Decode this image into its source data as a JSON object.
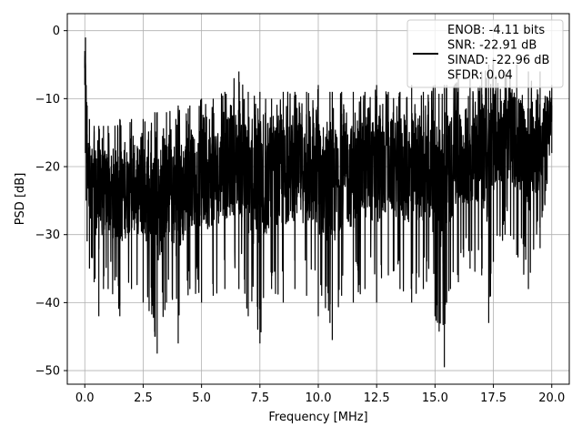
{
  "chart_data": {
    "type": "line",
    "title": "",
    "xlabel": "Frequency [MHz]",
    "ylabel": "PSD [dB]",
    "xlim": [
      -0.75,
      20.75
    ],
    "ylim": [
      -52,
      2.5
    ],
    "xticks": [
      0.0,
      2.5,
      5.0,
      7.5,
      10.0,
      12.5,
      15.0,
      17.5,
      20.0
    ],
    "xtick_labels": [
      "0.0",
      "2.5",
      "5.0",
      "7.5",
      "10.0",
      "12.5",
      "15.0",
      "17.5",
      "20.0"
    ],
    "yticks": [
      0,
      -10,
      -20,
      -30,
      -40,
      -50
    ],
    "ytick_labels": [
      "0",
      "−10",
      "−20",
      "−30",
      "−40",
      "−50"
    ],
    "grid": true,
    "legend": {
      "placement": "top-right",
      "entries": [
        "ENOB: -4.11 bits",
        "SNR: -22.91 dB",
        "SINAD: -22.96 dB",
        "SFDR: 0.04"
      ]
    },
    "series": [
      {
        "color": "#000000",
        "description": "noisy PSD trace, approximate envelope samples",
        "x": [
          0.0,
          0.03,
          0.06,
          0.1,
          0.2,
          0.4,
          0.6,
          0.8,
          1.0,
          1.5,
          2.0,
          2.5,
          3.0,
          3.1,
          3.5,
          4.0,
          4.5,
          5.0,
          5.5,
          6.0,
          6.6,
          7.0,
          7.5,
          8.0,
          8.5,
          9.0,
          9.5,
          10.0,
          10.5,
          10.6,
          11.0,
          11.5,
          12.0,
          12.5,
          13.0,
          13.5,
          14.0,
          14.5,
          15.0,
          15.4,
          15.5,
          16.0,
          16.5,
          17.0,
          17.3,
          17.5,
          18.0,
          18.5,
          19.0,
          19.5,
          20.0
        ],
        "y_high": [
          -3,
          -1,
          -8,
          -11,
          -13,
          -14,
          -14,
          -14,
          -14,
          -13,
          -13,
          -13,
          -12,
          -12,
          -12,
          -11,
          -11,
          -10,
          -10,
          -9,
          -6,
          -9,
          -9,
          -10,
          -9,
          -9,
          -9,
          -8,
          -9,
          -9,
          -9,
          -9,
          -9,
          -8,
          -9,
          -9,
          -8,
          -9,
          -8,
          -8,
          -8,
          -7,
          -7,
          -6,
          -5,
          -4,
          -6,
          -5,
          -6,
          -6,
          -8
        ],
        "y_low": [
          -8,
          -18,
          -25,
          -31,
          -35,
          -37,
          -42,
          -38,
          -38,
          -42,
          -38,
          -40,
          -45,
          -47.5,
          -40,
          -46,
          -38,
          -40,
          -39,
          -38,
          -38,
          -42,
          -46,
          -38,
          -40,
          -38,
          -39,
          -42,
          -43,
          -45.5,
          -39,
          -40,
          -38,
          -40,
          -36,
          -38,
          -40,
          -38,
          -42,
          -49.5,
          -40,
          -37,
          -35,
          -36,
          -43,
          -34,
          -30,
          -33,
          -38,
          -32,
          -18
        ]
      }
    ]
  }
}
